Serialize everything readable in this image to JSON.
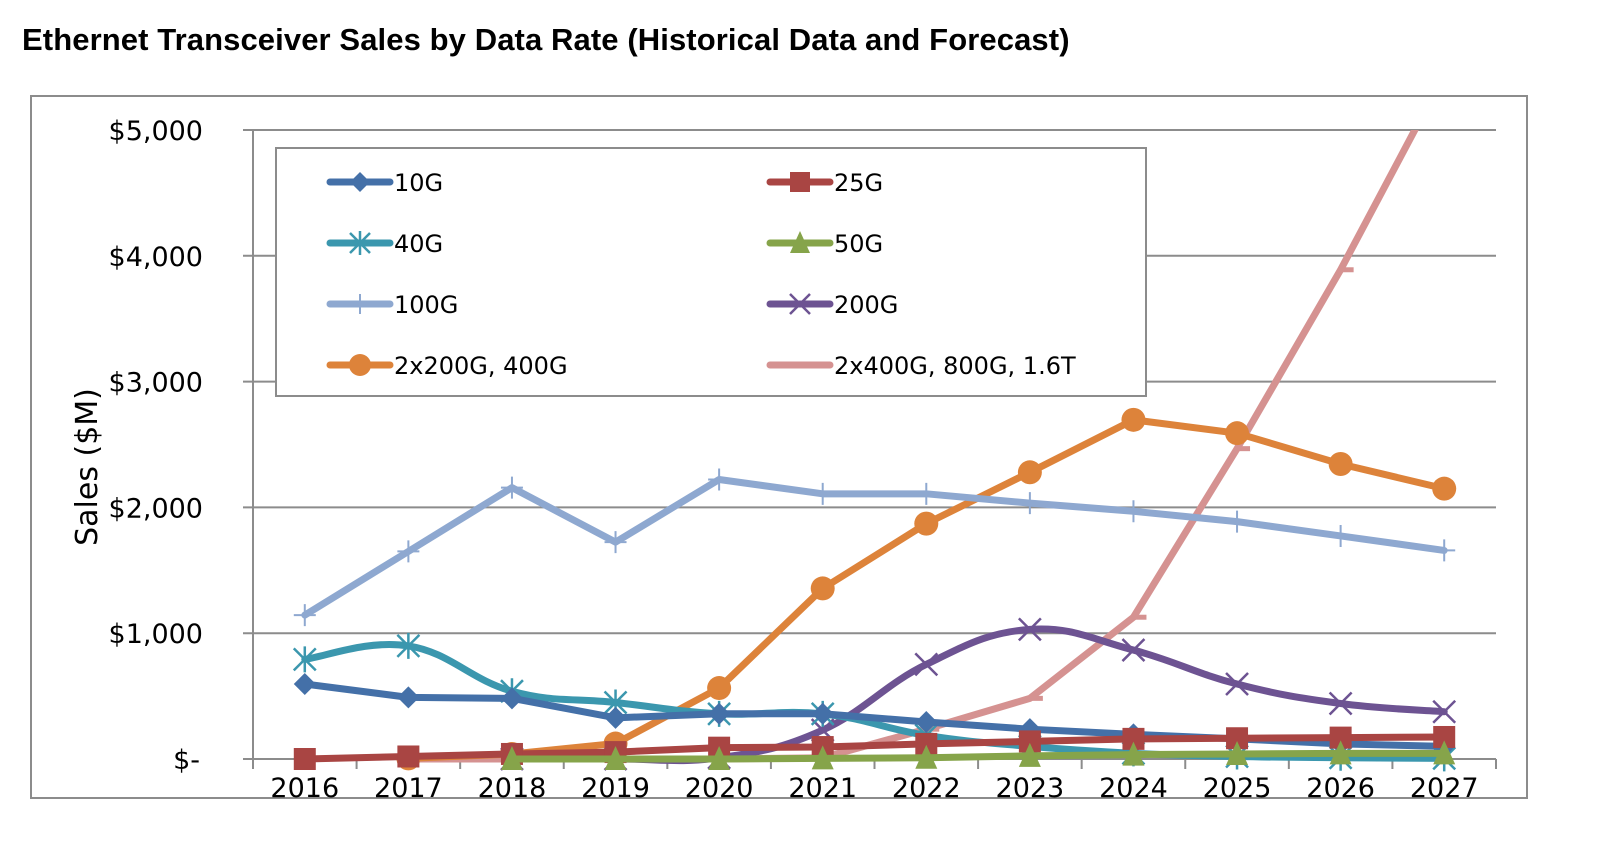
{
  "chart_data": {
    "type": "line",
    "title": "Ethernet Transceiver Sales by Data Rate (Historical Data and Forecast)",
    "xlabel": "",
    "ylabel": "Sales ($M)",
    "ylim": [
      0,
      5000
    ],
    "yticks": [
      0,
      1000,
      2000,
      3000,
      4000,
      5000
    ],
    "ytick_labels": [
      "$-",
      "$1,000",
      "$2,000",
      "$3,000",
      "$4,000",
      "$5,000"
    ],
    "categories": [
      "2016",
      "2017",
      "2018",
      "2019",
      "2020",
      "2021",
      "2022",
      "2023",
      "2024",
      "2025",
      "2026",
      "2027"
    ],
    "grid": "horizontal",
    "legend_position": "top-left (inside plot, two columns)",
    "series": [
      {
        "name": "10G",
        "color": "#4470A8",
        "marker": "diamond",
        "smooth": false,
        "values": [
          596,
          490,
          482,
          327,
          360,
          360,
          294,
          237,
          196,
          160,
          120,
          100
        ]
      },
      {
        "name": "25G",
        "color": "#A94543",
        "marker": "square",
        "smooth": false,
        "values": [
          0,
          20,
          40,
          55,
          90,
          95,
          120,
          140,
          160,
          165,
          170,
          175
        ]
      },
      {
        "name": "40G",
        "color": "#3B97AE",
        "marker": "asterisk",
        "smooth": true,
        "values": [
          792,
          899,
          539,
          449,
          359,
          359,
          188,
          100,
          45,
          20,
          10,
          5
        ]
      },
      {
        "name": "50G",
        "color": "#86A44A",
        "marker": "triangle",
        "smooth": false,
        "values": [
          null,
          null,
          0,
          0,
          0,
          5,
          10,
          25,
          35,
          40,
          45,
          45
        ]
      },
      {
        "name": "100G",
        "color": "#8EA8D0",
        "marker": "plus",
        "smooth": false,
        "values": [
          1144,
          1650,
          2157,
          1724,
          2222,
          2108,
          2108,
          2034,
          1969,
          1887,
          1773,
          1658
        ]
      },
      {
        "name": "200G",
        "color": "#6D5392",
        "marker": "x",
        "smooth": true,
        "values": [
          null,
          null,
          0,
          0,
          10,
          230,
          752,
          1030,
          866,
          596,
          441,
          376
        ]
      },
      {
        "name": "2x200G, 400G",
        "color": "#DD833A",
        "marker": "circle",
        "smooth": false,
        "values": [
          null,
          5,
          40,
          123,
          564,
          1356,
          1871,
          2279,
          2696,
          2590,
          2345,
          2149
        ]
      },
      {
        "name": "2x400G, 800G, 1.6T",
        "color": "#D59291",
        "marker": "dash",
        "smooth": false,
        "values": [
          null,
          0,
          0,
          0,
          0,
          10,
          237,
          482,
          1127,
          2467,
          3889,
          5440
        ]
      }
    ]
  }
}
